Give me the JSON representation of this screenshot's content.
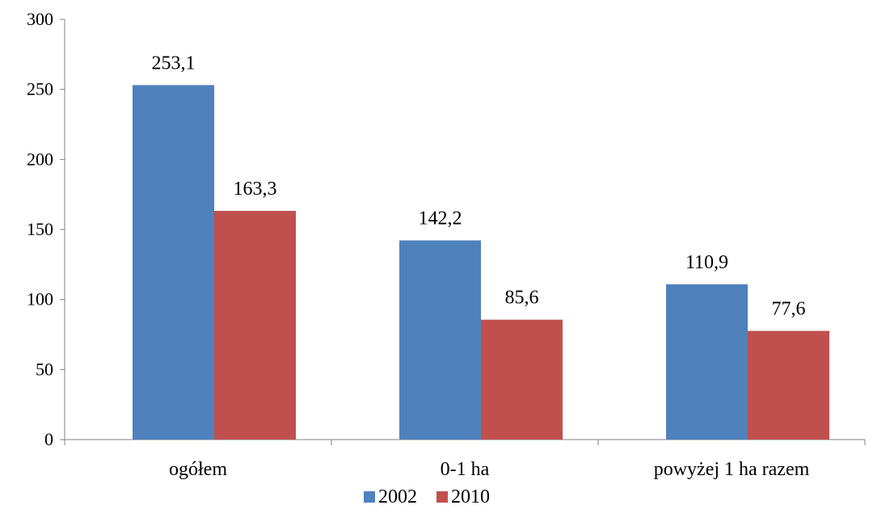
{
  "chart_data": {
    "type": "bar",
    "title": "",
    "xlabel": "",
    "ylabel": "",
    "categories": [
      "ogółem",
      "0-1 ha",
      "powyżej 1 ha razem"
    ],
    "series": [
      {
        "name": "2002",
        "color": "#4F81BD",
        "values": [
          253.1,
          142.2,
          110.9
        ],
        "labels": [
          "253,1",
          "142,2",
          "110,9"
        ]
      },
      {
        "name": "2010",
        "color": "#C0504D",
        "values": [
          163.3,
          85.6,
          77.6
        ],
        "labels": [
          "163,3",
          "85,6",
          "77,6"
        ]
      }
    ],
    "ylim": [
      0,
      300
    ],
    "yticks": [
      0,
      50,
      100,
      150,
      200,
      250,
      300
    ],
    "grid": false,
    "legend": "bottom",
    "axis_color": "#808080"
  }
}
